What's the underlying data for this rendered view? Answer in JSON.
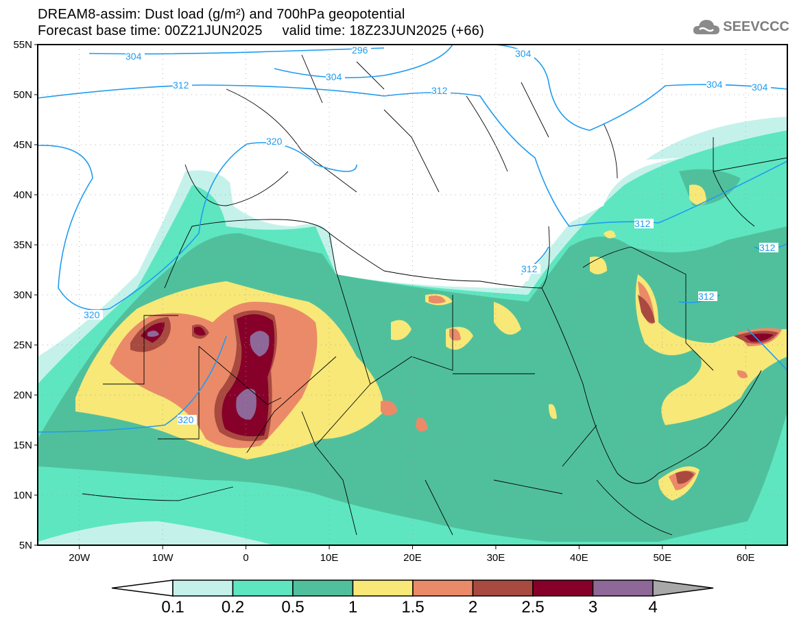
{
  "header": {
    "title_line1": "DREAM8-assim: Dust load (g/m²) and 700hPa geopotential",
    "title_line2": "Forecast base time: 00Z21JUN2025     valid time: 18Z23JUN2025 (+66)",
    "logo_text": "SEEVCCC",
    "logo_icon": "cloud-icon"
  },
  "map": {
    "lat_labels": [
      "55N",
      "50N",
      "45N",
      "40N",
      "35N",
      "30N",
      "25N",
      "20N",
      "15N",
      "10N",
      "5N"
    ],
    "lon_labels": [
      "20W",
      "10W",
      "0",
      "10E",
      "20E",
      "30E",
      "40E",
      "50E",
      "60E"
    ],
    "contour_labels": [
      "304",
      "296",
      "304",
      "304",
      "304",
      "304",
      "312",
      "312",
      "312",
      "312",
      "312",
      "312",
      "320",
      "320",
      "320"
    ],
    "contour_color": "#1e9bf0"
  },
  "legend": {
    "levels": [
      "0.1",
      "0.2",
      "0.5",
      "1",
      "1.5",
      "2",
      "2.5",
      "3",
      "4"
    ],
    "colors": [
      "#c4f2ea",
      "#5ee6c0",
      "#50c09c",
      "#f7e878",
      "#eb8a68",
      "#a94a40",
      "#870029",
      "#8e6898"
    ],
    "over_color": "#a8a8a8",
    "under_color": "#ffffff"
  }
}
